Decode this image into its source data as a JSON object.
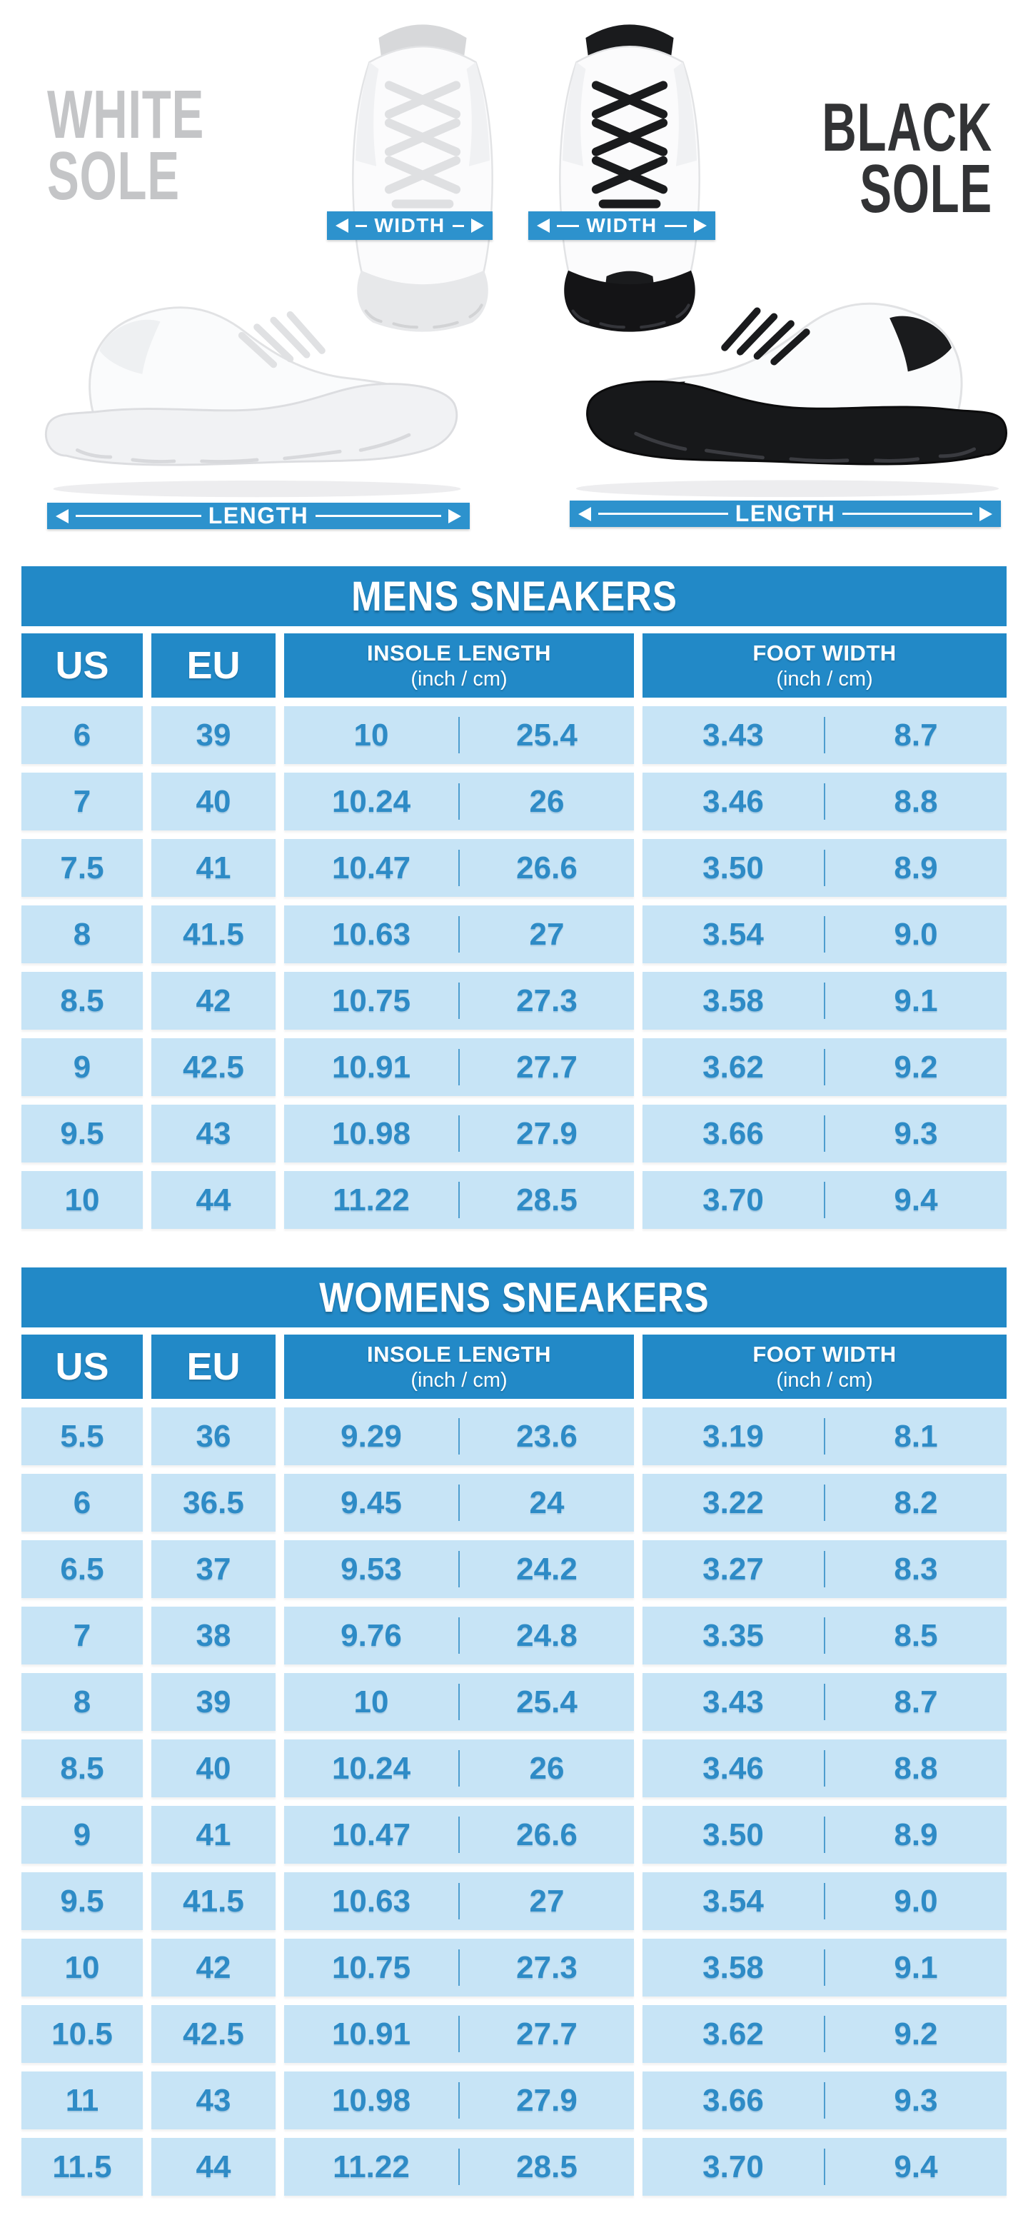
{
  "colors": {
    "header_blue": "#2289C7",
    "cell_blue": "#C7E4F6",
    "text_blue": "#2E8BC6",
    "band_blue": "#2D92CD",
    "white_label_gray": "#C4C5C7",
    "black_label_dark": "#323335"
  },
  "hero": {
    "white_sole": {
      "line1": "WHITE",
      "line2": "SOLE"
    },
    "black_sole": {
      "line1": "BLACK",
      "line2": "SOLE"
    },
    "width_label": "WIDTH",
    "length_label": "LENGTH"
  },
  "tables": [
    {
      "title": "MENS SNEAKERS",
      "headers": {
        "us": "US",
        "eu": "EU",
        "insole": {
          "line1": "INSOLE LENGTH",
          "line2": "(inch / cm)"
        },
        "foot": {
          "line1": "FOOT WIDTH",
          "line2": "(inch / cm)"
        }
      },
      "rows": [
        [
          "6",
          "39",
          "10",
          "25.4",
          "3.43",
          "8.7"
        ],
        [
          "7",
          "40",
          "10.24",
          "26",
          "3.46",
          "8.8"
        ],
        [
          "7.5",
          "41",
          "10.47",
          "26.6",
          "3.50",
          "8.9"
        ],
        [
          "8",
          "41.5",
          "10.63",
          "27",
          "3.54",
          "9.0"
        ],
        [
          "8.5",
          "42",
          "10.75",
          "27.3",
          "3.58",
          "9.1"
        ],
        [
          "9",
          "42.5",
          "10.91",
          "27.7",
          "3.62",
          "9.2"
        ],
        [
          "9.5",
          "43",
          "10.98",
          "27.9",
          "3.66",
          "9.3"
        ],
        [
          "10",
          "44",
          "11.22",
          "28.5",
          "3.70",
          "9.4"
        ]
      ]
    },
    {
      "title": "WOMENS SNEAKERS",
      "headers": {
        "us": "US",
        "eu": "EU",
        "insole": {
          "line1": "INSOLE LENGTH",
          "line2": "(inch / cm)"
        },
        "foot": {
          "line1": "FOOT WIDTH",
          "line2": "(inch / cm)"
        }
      },
      "rows": [
        [
          "5.5",
          "36",
          "9.29",
          "23.6",
          "3.19",
          "8.1"
        ],
        [
          "6",
          "36.5",
          "9.45",
          "24",
          "3.22",
          "8.2"
        ],
        [
          "6.5",
          "37",
          "9.53",
          "24.2",
          "3.27",
          "8.3"
        ],
        [
          "7",
          "38",
          "9.76",
          "24.8",
          "3.35",
          "8.5"
        ],
        [
          "8",
          "39",
          "10",
          "25.4",
          "3.43",
          "8.7"
        ],
        [
          "8.5",
          "40",
          "10.24",
          "26",
          "3.46",
          "8.8"
        ],
        [
          "9",
          "41",
          "10.47",
          "26.6",
          "3.50",
          "8.9"
        ],
        [
          "9.5",
          "41.5",
          "10.63",
          "27",
          "3.54",
          "9.0"
        ],
        [
          "10",
          "42",
          "10.75",
          "27.3",
          "3.58",
          "9.1"
        ],
        [
          "10.5",
          "42.5",
          "10.91",
          "27.7",
          "3.62",
          "9.2"
        ],
        [
          "11",
          "43",
          "10.98",
          "27.9",
          "3.66",
          "9.3"
        ],
        [
          "11.5",
          "44",
          "11.22",
          "28.5",
          "3.70",
          "9.4"
        ]
      ]
    }
  ]
}
